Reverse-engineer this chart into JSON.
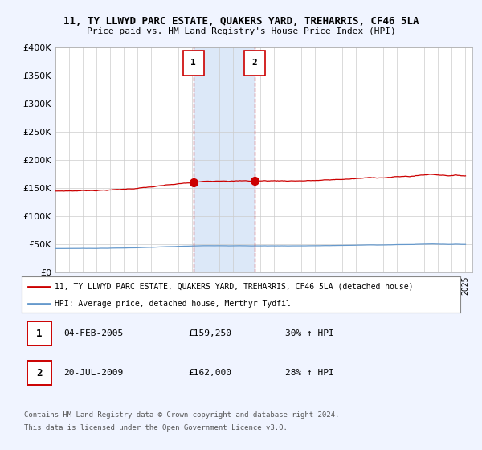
{
  "title": "11, TY LLWYD PARC ESTATE, QUAKERS YARD, TREHARRIS, CF46 5LA",
  "subtitle": "Price paid vs. HM Land Registry's House Price Index (HPI)",
  "ylim": [
    0,
    400000
  ],
  "yticks": [
    0,
    50000,
    100000,
    150000,
    200000,
    250000,
    300000,
    350000,
    400000
  ],
  "xlim_start": 1995.0,
  "xlim_end": 2025.5,
  "red_line_label": "11, TY LLWYD PARC ESTATE, QUAKERS YARD, TREHARRIS, CF46 5LA (detached house)",
  "blue_line_label": "HPI: Average price, detached house, Merthyr Tydfil",
  "sale1_date": 2005.09,
  "sale1_price": 159250,
  "sale1_label": "1",
  "sale1_display": "04-FEB-2005",
  "sale1_pct": "30% ↑ HPI",
  "sale2_date": 2009.55,
  "sale2_price": 162000,
  "sale2_label": "2",
  "sale2_display": "20-JUL-2009",
  "sale2_pct": "28% ↑ HPI",
  "footer1": "Contains HM Land Registry data © Crown copyright and database right 2024.",
  "footer2": "This data is licensed under the Open Government Licence v3.0.",
  "bg_color": "#f0f4ff",
  "plot_bg": "#ffffff",
  "red_color": "#cc0000",
  "blue_color": "#6699cc",
  "shaded_color": "#dce8f8"
}
